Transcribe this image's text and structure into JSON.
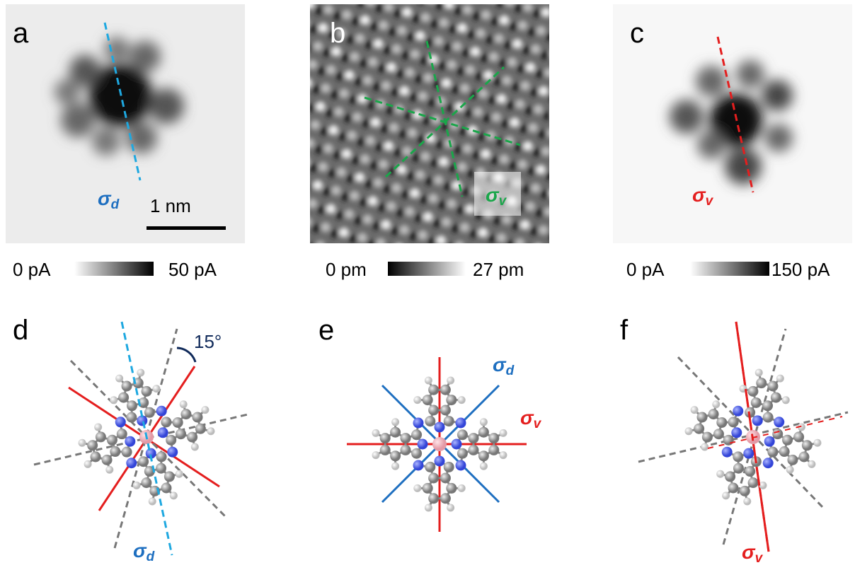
{
  "panels": [
    {
      "label": "a",
      "symmetry_labels": [
        {
          "symbol": "σ",
          "sub": "d"
        }
      ],
      "colorbar": {
        "min": "0 pA",
        "max": "50 pA"
      },
      "scale_bar": "1 nm"
    },
    {
      "label": "b",
      "symmetry_labels": [
        {
          "symbol": "σ",
          "sub": "v"
        }
      ],
      "colorbar": {
        "min": "0 pm",
        "max": "27 pm"
      }
    },
    {
      "label": "c",
      "symmetry_labels": [
        {
          "symbol": "σ",
          "sub": "v"
        }
      ],
      "colorbar": {
        "min": "0 pA",
        "max": "150 pA"
      }
    },
    {
      "label": "d",
      "symmetry_labels": [
        {
          "symbol": "σ",
          "sub": "d"
        }
      ],
      "angle": "15°"
    },
    {
      "label": "e",
      "symmetry_labels": [
        {
          "symbol": "σ",
          "sub": "d"
        },
        {
          "symbol": "σ",
          "sub": "v"
        }
      ]
    },
    {
      "label": "f",
      "symmetry_labels": [
        {
          "symbol": "σ",
          "sub": "v"
        }
      ]
    }
  ]
}
